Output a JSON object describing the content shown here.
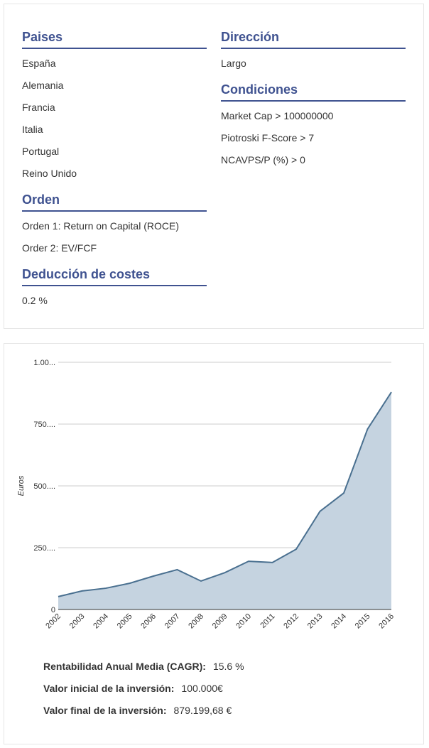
{
  "columns": [
    [
      {
        "title": "Paises",
        "items": [
          "España",
          "Alemania",
          "Francia",
          "Italia",
          "Portugal",
          "Reino Unido"
        ]
      },
      {
        "title": "Orden",
        "items": [
          "Orden 1: Return on Capital (ROCE)",
          "Order 2: EV/FCF"
        ]
      },
      {
        "title": "Deducción de costes",
        "items": [
          "0.2 %"
        ]
      }
    ],
    [
      {
        "title": "Dirección",
        "items": [
          "Largo"
        ]
      },
      {
        "title": "Condiciones",
        "items": [
          "Market Cap > 100000000",
          "Piotroski F-Score > 7",
          "NCAVPS/P (%) > 0"
        ]
      }
    ]
  ],
  "chart_data": {
    "type": "area",
    "ylabel": "Euros",
    "categories": [
      "2002",
      "2003",
      "2004",
      "2005",
      "2006",
      "2007",
      "2008",
      "2009",
      "2010",
      "2011",
      "2012",
      "2013",
      "2014",
      "2015",
      "2016"
    ],
    "values": [
      52000,
      75000,
      86000,
      106000,
      135000,
      161000,
      115000,
      149000,
      195000,
      190000,
      244000,
      397000,
      471000,
      730000,
      879199.68
    ],
    "color": "#4a7090",
    "fill": "#c5d3e0",
    "ylim": [
      0,
      1000000
    ],
    "yticks": [
      0,
      {
        "value": 250000,
        "label": "250...."
      },
      {
        "value": 500000,
        "label": "500...."
      },
      {
        "value": 750000,
        "label": "750...."
      },
      {
        "value": 1000000,
        "label": "1.00..."
      }
    ],
    "grid": true
  },
  "summary": [
    {
      "label": "Rentabilidad Anual Media (CAGR):",
      "value": "15.6 %"
    },
    {
      "label": "Valor inicial de la inversión:",
      "value": "100.000€"
    },
    {
      "label": "Valor final de la inversión:",
      "value": "879.199,68 €"
    }
  ]
}
